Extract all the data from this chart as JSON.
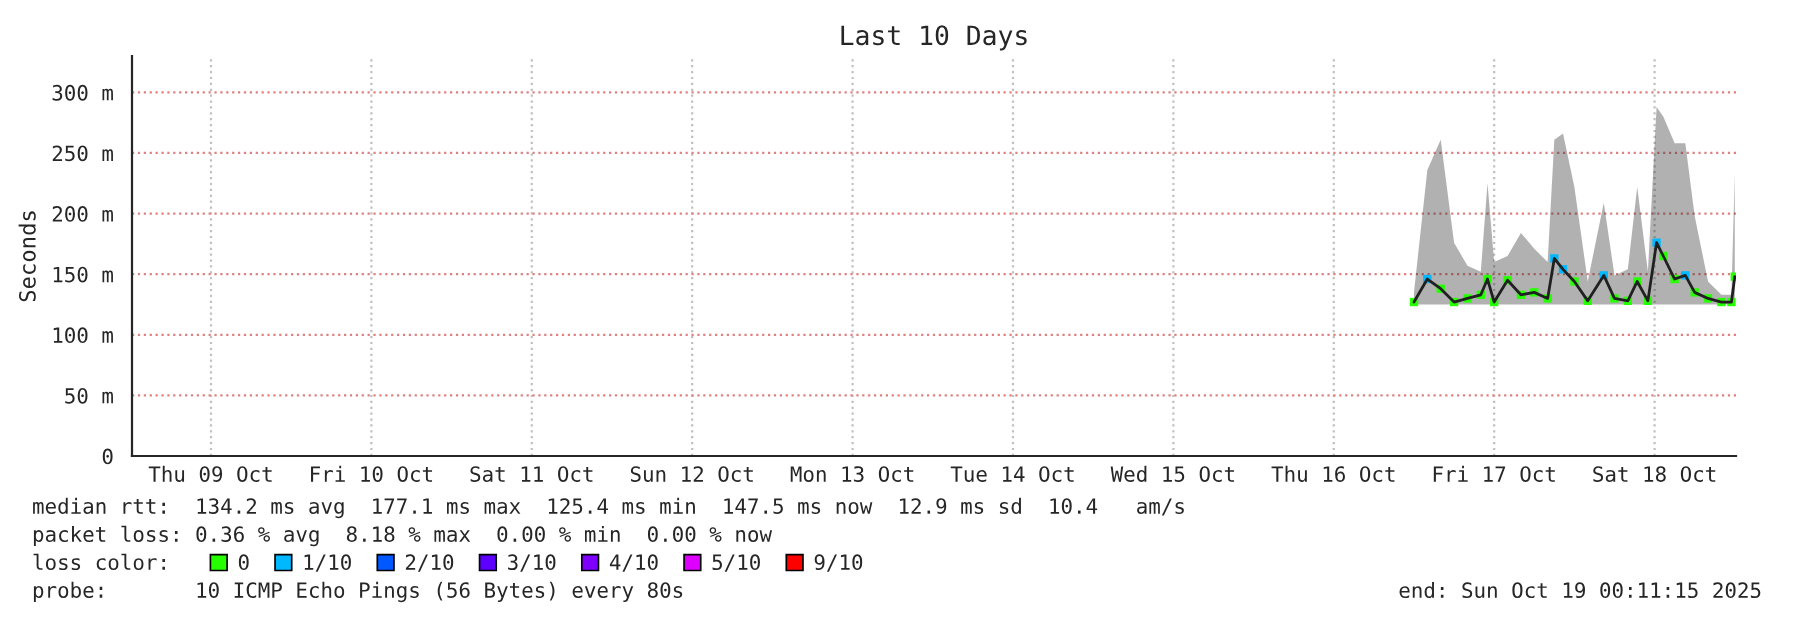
{
  "chart_data": {
    "type": "line",
    "title": "Last 10 Days",
    "ylabel": "Seconds",
    "legend_title": "loss color:",
    "legend": "bottom",
    "grid": true,
    "x": [
      "2025-10-17T00:00",
      "2025-10-17T02:00",
      "2025-10-17T04:00",
      "2025-10-17T06:00",
      "2025-10-17T08:00",
      "2025-10-17T10:00",
      "2025-10-17T11:00",
      "2025-10-17T12:00",
      "2025-10-17T14:00",
      "2025-10-17T16:00",
      "2025-10-17T18:00",
      "2025-10-17T20:00",
      "2025-10-17T21:00",
      "2025-10-17T22:18",
      "2025-10-18T00:00",
      "2025-10-18T02:00",
      "2025-10-18T04:24",
      "2025-10-18T06:00",
      "2025-10-18T08:00",
      "2025-10-18T09:24",
      "2025-10-18T11:00",
      "2025-10-18T12:18",
      "2025-10-18T13:18",
      "2025-10-18T15:00",
      "2025-10-18T16:36",
      "2025-10-18T18:00",
      "2025-10-18T20:00",
      "2025-10-18T22:00",
      "2025-10-18T23:30",
      "2025-10-19T00:00"
    ],
    "series": [
      {
        "color": "#202020",
        "line_style": "solid",
        "values": [
          127,
          146,
          138,
          127,
          130,
          133,
          146,
          127,
          145,
          133,
          135,
          130,
          163,
          154,
          144,
          128,
          149,
          130,
          128,
          144,
          128,
          176,
          165,
          146,
          149,
          135,
          130,
          127,
          127,
          148
        ],
        "lower": [
          125,
          125,
          125,
          125,
          125,
          125,
          125,
          125,
          125,
          125,
          125,
          125,
          125,
          125,
          125,
          125,
          125,
          125,
          125,
          125,
          125,
          125,
          125,
          125,
          125,
          125,
          125,
          125,
          125,
          125
        ],
        "upper": [
          135,
          236,
          261,
          176,
          157,
          152,
          225,
          160,
          165,
          184,
          171,
          160,
          261,
          266,
          222,
          144,
          209,
          149,
          154,
          222,
          152,
          288,
          280,
          258,
          258,
          198,
          144,
          133,
          133,
          233
        ]
      },
      {
        "type": "scatter",
        "name": "0",
        "color": "#26ff00",
        "marker": "square",
        "values": [
          127,
          null,
          138,
          127,
          130,
          133,
          146,
          127,
          145,
          133,
          135,
          130,
          null,
          null,
          144,
          128,
          null,
          130,
          128,
          144,
          128,
          null,
          165,
          146,
          null,
          135,
          130,
          127,
          127,
          148
        ]
      },
      {
        "type": "scatter",
        "name": "1/10",
        "color": "#00b8ff",
        "marker": "square",
        "values": [
          null,
          146,
          null,
          null,
          null,
          null,
          null,
          null,
          null,
          null,
          null,
          null,
          163,
          154,
          null,
          null,
          149,
          null,
          null,
          null,
          null,
          176,
          null,
          null,
          149,
          null,
          null,
          null,
          null,
          null
        ]
      },
      {
        "type": "scatter",
        "name": "2/10",
        "color": "#0059ff",
        "marker": "square",
        "values": [
          null,
          null,
          null,
          null,
          null,
          null,
          null,
          null,
          null,
          null,
          null,
          null,
          null,
          null,
          null,
          null,
          null,
          null,
          null,
          null,
          null,
          null,
          null,
          null,
          null,
          null,
          null,
          null,
          null,
          null
        ]
      },
      {
        "type": "scatter",
        "name": "3/10",
        "color": "#5e00ff",
        "marker": "square",
        "values": [
          null,
          null,
          null,
          null,
          null,
          null,
          null,
          null,
          null,
          null,
          null,
          null,
          null,
          null,
          null,
          null,
          null,
          null,
          null,
          null,
          null,
          null,
          null,
          null,
          null,
          null,
          null,
          null,
          null,
          null
        ]
      },
      {
        "type": "scatter",
        "name": "4/10",
        "color": "#7e00ff",
        "marker": "square",
        "values": [
          null,
          null,
          null,
          null,
          null,
          null,
          null,
          null,
          null,
          null,
          null,
          null,
          null,
          null,
          null,
          null,
          null,
          null,
          null,
          null,
          null,
          null,
          null,
          null,
          null,
          null,
          null,
          null,
          null,
          null
        ]
      },
      {
        "type": "scatter",
        "name": "5/10",
        "color": "#dd00ff",
        "marker": "square",
        "values": [
          null,
          null,
          null,
          null,
          null,
          null,
          null,
          null,
          null,
          null,
          null,
          null,
          null,
          null,
          null,
          null,
          null,
          null,
          null,
          null,
          null,
          null,
          null,
          null,
          null,
          null,
          null,
          null,
          null,
          null
        ]
      },
      {
        "type": "scatter",
        "name": "9/10",
        "color": "#ff0000",
        "marker": "square",
        "values": [
          null,
          null,
          null,
          null,
          null,
          null,
          null,
          null,
          null,
          null,
          null,
          null,
          null,
          null,
          null,
          null,
          null,
          null,
          null,
          null,
          null,
          null,
          null,
          null,
          null,
          null,
          null,
          null,
          null,
          null
        ]
      }
    ],
    "xlim": [
      "2025-10-09T00:11",
      "2025-10-19T00:11"
    ],
    "xticks": [
      {
        "value": "2025-10-09T12:00",
        "label": "Thu 09 Oct"
      },
      {
        "value": "2025-10-10T12:00",
        "label": "Fri 10 Oct"
      },
      {
        "value": "2025-10-11T12:00",
        "label": "Sat 11 Oct"
      },
      {
        "value": "2025-10-12T12:00",
        "label": "Sun 12 Oct"
      },
      {
        "value": "2025-10-13T12:00",
        "label": "Mon 13 Oct"
      },
      {
        "value": "2025-10-14T12:00",
        "label": "Tue 14 Oct"
      },
      {
        "value": "2025-10-15T12:00",
        "label": "Wed 15 Oct"
      },
      {
        "value": "2025-10-16T12:00",
        "label": "Thu 16 Oct"
      },
      {
        "value": "2025-10-17T12:00",
        "label": "Fri 17 Oct"
      },
      {
        "value": "2025-10-18T12:00",
        "label": "Sat 18 Oct"
      }
    ],
    "ylim": [
      0,
      330
    ],
    "yticks": [
      0,
      {
        "value": 50,
        "label": "50 m"
      },
      {
        "value": 100,
        "label": "100 m"
      },
      {
        "value": 150,
        "label": "150 m"
      },
      {
        "value": 200,
        "label": "200 m"
      },
      {
        "value": 250,
        "label": "250 m"
      },
      {
        "value": 300,
        "label": "300 m"
      }
    ],
    "annotations": [
      "median rtt:  134.2 ms avg  177.1 ms max  125.4 ms min  147.5 ms now  12.9 ms sd  10.4   am/s",
      "packet loss: 0.36 % avg  8.18 % max  0.00 % min  0.00 % now",
      "probe:       10 ICMP Echo Pings (56 Bytes) every 80s",
      "end: Sun Oct 19 00:11:15 2025"
    ]
  }
}
